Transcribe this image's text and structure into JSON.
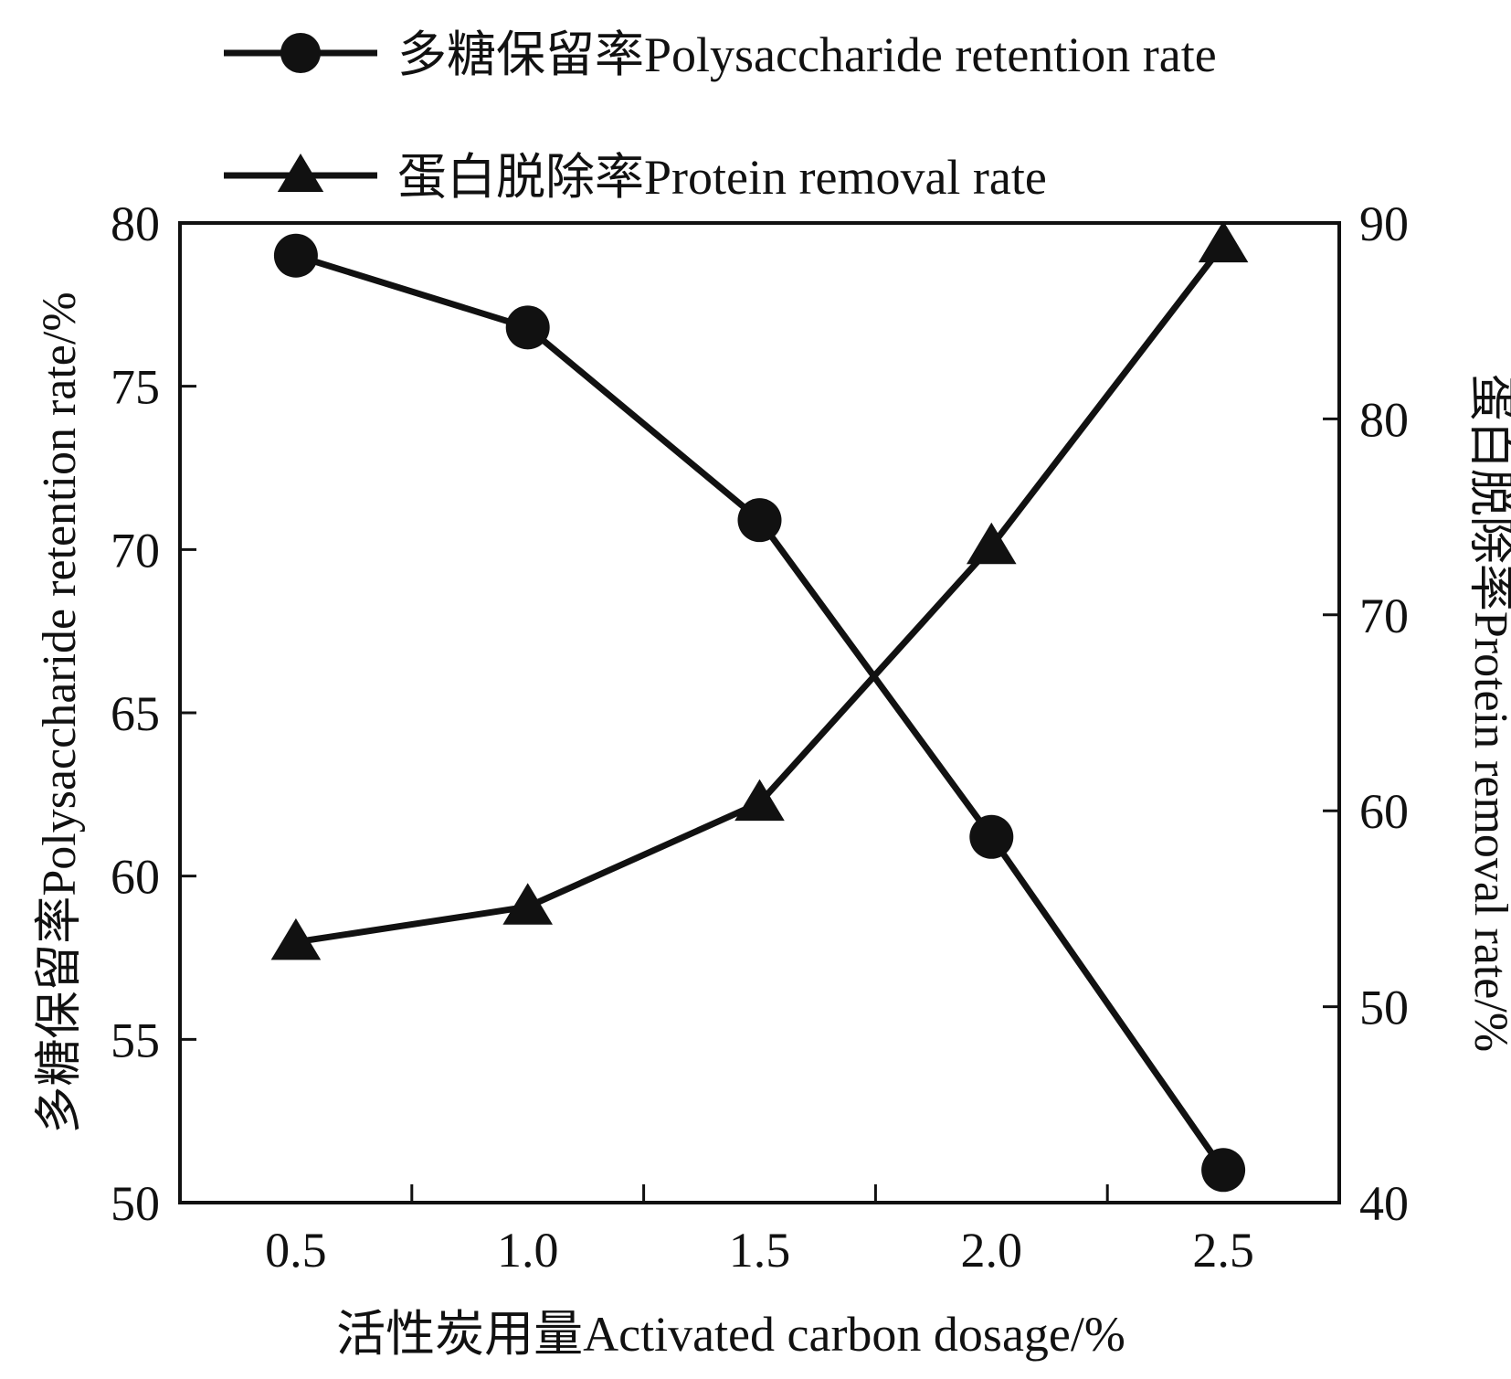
{
  "chart_data": {
    "type": "line",
    "title": "",
    "xlabel": "活性炭用量Activated carbon dosage/%",
    "ylabel_left": "多糖保留率Polysaccharide retention rate/%",
    "ylabel_right": "蛋白脱除率Protein removal rate/%",
    "x": [
      0.5,
      1.0,
      1.5,
      2.0,
      2.5
    ],
    "x_tick_labels": [
      "0.5",
      "1.0",
      "1.5",
      "2.0",
      "2.5"
    ],
    "xlim": [
      0.25,
      2.75
    ],
    "ylim_left": [
      50,
      80
    ],
    "ylim_right": [
      40,
      90
    ],
    "y_left_ticks": [
      "50",
      "55",
      "60",
      "65",
      "70",
      "75",
      "80"
    ],
    "y_right_ticks": [
      "40",
      "50",
      "60",
      "70",
      "80",
      "90"
    ],
    "grid": false,
    "legend_position": "top",
    "series": [
      {
        "name": "多糖保留率Polysaccharide retention rate",
        "axis": "left",
        "marker": "circle",
        "values": [
          79.0,
          76.8,
          70.9,
          61.2,
          51.0
        ]
      },
      {
        "name": "蛋白脱除率Protein removal rate",
        "axis": "right",
        "marker": "triangle",
        "values": [
          53.3,
          55.1,
          60.4,
          73.5,
          88.9
        ]
      }
    ],
    "color": "#111111"
  }
}
